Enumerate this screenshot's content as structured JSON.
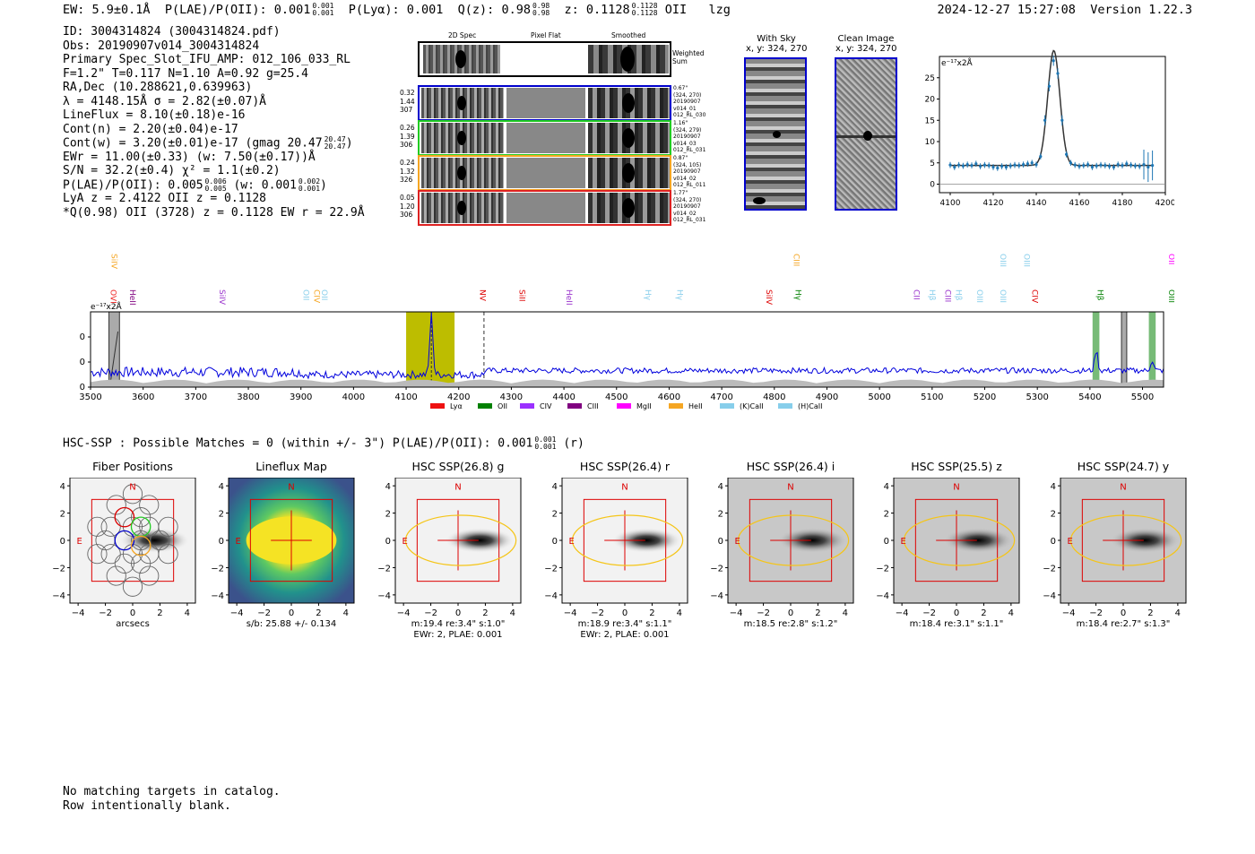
{
  "header": {
    "ew": "EW: 5.9±0.1Å",
    "plae_label": "P(LAE)/P(OII): 0.001",
    "plae_sup": "0.001",
    "plae_sub": "0.001",
    "plya": "P(Lyα): 0.001",
    "q_label": "Q(z): 0.98",
    "q_sup": "0.98",
    "q_sub": "0.98",
    "z_label": "z: 0.1128",
    "z_sup": "0.1128",
    "z_sub": "0.1128",
    "z_line": "OII",
    "flag": "lzg",
    "datetime": "2024-12-27 15:27:08",
    "version": "Version 1.22.3"
  },
  "info": {
    "id": "ID: 3004314824 (3004314824.pdf)",
    "obs": "Obs: 20190907v014_3004314824",
    "primary": "Primary Spec_Slot_IFU_AMP: 012_106_033_RL",
    "fit": "F=1.2\"  T=0.117  N=1.10  A=0.92  g=25.4",
    "radec": "RA,Dec (10.288621,0.639963)",
    "lambda": "λ = 4148.15Å  σ = 2.82(±0.07)Å",
    "lineflux": "LineFlux = 8.10(±0.18)e-16",
    "contn": "Cont(n) = 2.20(±0.04)e-17",
    "contw": "Cont(w) = 3.20(±0.01)e-17 (gmag 20.47",
    "contw_sup": "20.47",
    "contw_sub": "20.47",
    "ewr": "EWr = 11.00(±0.33) (w: 7.50(±0.17))Å",
    "sn": "S/N = 32.2(±0.4)  χ² = 1.1(±0.2)",
    "plae": "P(LAE)/P(OII): 0.005",
    "plae_sup": "0.006",
    "plae_sub": "0.005",
    "plae_w": "(w: 0.001",
    "plae_w_sup": "0.002",
    "plae_w_sub": "0.001",
    "lya": "LyA z = 2.4122  OII z = 0.1128",
    "q": "*Q(0.98) OII (3728) z = 0.1128  EW r = 22.9Å"
  },
  "cutouts": {
    "col_titles": [
      "2D Spec",
      "Pixel Flat",
      "Smoothed"
    ],
    "weighted": "Weighted Sum",
    "rows": [
      {
        "left": [
          "0.32",
          "1.44",
          "307"
        ],
        "right": [
          "0.67\"",
          "(324, 270)",
          "20190907",
          "v014_01",
          "012_RL_030"
        ],
        "color": "#0000cc"
      },
      {
        "left": [
          "0.26",
          "1.39",
          "306"
        ],
        "right": [
          "1.16\"",
          "(324, 279)",
          "20190907",
          "v014_03",
          "012_RL_031"
        ],
        "color": "#22cc22"
      },
      {
        "left": [
          "0.24",
          "1.32",
          "326"
        ],
        "right": [
          "0.87\"",
          "(324, 105)",
          "20190907",
          "v014_02",
          "012_RL_011"
        ],
        "color": "#f5a623"
      },
      {
        "left": [
          "0.05",
          "1.20",
          "306"
        ],
        "right": [
          "1.77\"",
          "(324, 270)",
          "20190907",
          "v014_02",
          "012_RL_031"
        ],
        "color": "#dd2222"
      }
    ]
  },
  "sky": {
    "with_sky_title": "With Sky",
    "with_sky_xy": "x, y: 324, 270",
    "clean_title": "Clean Image",
    "clean_xy": "x, y: 324, 270"
  },
  "zoom_chart": {
    "ylabel": "e⁻¹⁷x2Å",
    "xticks": [
      "4100",
      "4120",
      "4140",
      "4160",
      "4180",
      "4200"
    ],
    "yticks": [
      "0",
      "5",
      "10",
      "15",
      "20",
      "25"
    ]
  },
  "chart_data": [
    {
      "type": "scatter",
      "title": "",
      "ylabel": "e-17x2Å",
      "xlim": [
        4095,
        4200
      ],
      "ylim": [
        -2,
        30
      ],
      "x": [
        4100,
        4102,
        4104,
        4106,
        4108,
        4110,
        4112,
        4114,
        4116,
        4118,
        4120,
        4122,
        4124,
        4126,
        4128,
        4130,
        4132,
        4134,
        4136,
        4138,
        4140,
        4142,
        4144,
        4146,
        4148,
        4150,
        4152,
        4154,
        4156,
        4158,
        4160,
        4162,
        4164,
        4166,
        4168,
        4170,
        4172,
        4174,
        4176,
        4178,
        4180,
        4182,
        4184,
        4186,
        4188,
        4190,
        4192,
        4194
      ],
      "y": [
        4.5,
        4.0,
        4.5,
        4.3,
        4.6,
        4.4,
        4.8,
        4.2,
        4.5,
        4.4,
        4.0,
        3.8,
        4.2,
        4.0,
        4.3,
        4.5,
        4.4,
        4.6,
        4.8,
        5.0,
        4.6,
        6.5,
        15,
        23,
        29,
        26,
        15,
        7,
        5.0,
        4.5,
        4.2,
        4.4,
        4.6,
        4.0,
        4.3,
        4.5,
        4.4,
        4.2,
        4.0,
        4.6,
        4.4,
        4.8,
        4.5,
        4.3,
        4.2,
        4.6,
        4.0,
        4.4
      ],
      "fit_peak": 27.0,
      "fit_center": 4148.15,
      "fit_sigma": 2.82,
      "fit_continuum": 4.4
    },
    {
      "type": "line",
      "title": "",
      "ylabel": "e-17x2Å",
      "xlim": [
        3500,
        5540
      ],
      "ylim": [
        0,
        30
      ],
      "xticks": [
        "3500",
        "3600",
        "3700",
        "3800",
        "3900",
        "4000",
        "4100",
        "4200",
        "4300",
        "4400",
        "4500",
        "4600",
        "4700",
        "4800",
        "4900",
        "5000",
        "5100",
        "5200",
        "5300",
        "5400",
        "5500"
      ],
      "yticks": [
        "0",
        "10",
        "20"
      ],
      "lines": [
        {
          "name": "OVI",
          "x": 3533,
          "color": "#ee2222",
          "row": 1
        },
        {
          "name": "SiIV",
          "x": 3535,
          "color": "#f5a623",
          "row": 0
        },
        {
          "name": "HeII",
          "x": 3570,
          "color": "#800080",
          "row": 1
        },
        {
          "name": "SiIV",
          "x": 3740,
          "color": "#9932cc",
          "row": 1
        },
        {
          "name": "OII",
          "x": 3900,
          "color": "#87ceeb",
          "row": 1
        },
        {
          "name": "CIV",
          "x": 3920,
          "color": "#f5a623",
          "row": 1
        },
        {
          "name": "OII",
          "x": 3935,
          "color": "#87ceeb",
          "row": 1
        },
        {
          "name": "NV",
          "x": 4235,
          "color": "#dd0000",
          "row": 1
        },
        {
          "name": "SiII",
          "x": 4310,
          "color": "#dd0000",
          "row": 1
        },
        {
          "name": "HeII",
          "x": 4400,
          "color": "#9932cc",
          "row": 1
        },
        {
          "name": "Hγ",
          "x": 4550,
          "color": "#87ceeb",
          "row": 1
        },
        {
          "name": "Hγ",
          "x": 4610,
          "color": "#87ceeb",
          "row": 1
        },
        {
          "name": "SiIV",
          "x": 4780,
          "color": "#dd0000",
          "row": 1
        },
        {
          "name": "CIII",
          "x": 4832,
          "color": "#f5a623",
          "row": 0
        },
        {
          "name": "Hγ",
          "x": 4835,
          "color": "#008000",
          "row": 1
        },
        {
          "name": "CII",
          "x": 5060,
          "color": "#9932cc",
          "row": 1
        },
        {
          "name": "Hβ",
          "x": 5090,
          "color": "#87ceeb",
          "row": 1
        },
        {
          "name": "CIII",
          "x": 5120,
          "color": "#9932cc",
          "row": 1
        },
        {
          "name": "Hβ",
          "x": 5140,
          "color": "#87ceeb",
          "row": 1
        },
        {
          "name": "OIII",
          "x": 5180,
          "color": "#87ceeb",
          "row": 1
        },
        {
          "name": "OIII",
          "x": 5225,
          "color": "#87ceeb",
          "row": 0
        },
        {
          "name": "OIII",
          "x": 5225,
          "color": "#87ceeb",
          "row": 1
        },
        {
          "name": "OIII",
          "x": 5270,
          "color": "#87ceeb",
          "row": 0
        },
        {
          "name": "CIV",
          "x": 5285,
          "color": "#dd0000",
          "row": 1
        },
        {
          "name": "Hβ",
          "x": 5410,
          "color": "#008000",
          "row": 1
        },
        {
          "name": "OII",
          "x": 5545,
          "color": "#ff00ff",
          "row": 0
        },
        {
          "name": "OIII",
          "x": 5545,
          "color": "#008000",
          "row": 1
        }
      ],
      "legend": [
        {
          "name": "Lyα",
          "color": "#ee1111"
        },
        {
          "name": "OII",
          "color": "#008000"
        },
        {
          "name": "CIV",
          "color": "#9b30ff"
        },
        {
          "name": "CIII",
          "color": "#800080"
        },
        {
          "name": "MgII",
          "color": "#ff00ff"
        },
        {
          "name": "HeII",
          "color": "#f5a623"
        },
        {
          "name": "(K)CaII",
          "color": "#87ceeb"
        },
        {
          "name": "(H)CaII",
          "color": "#87ceeb"
        }
      ]
    }
  ],
  "hsc": {
    "header": "HSC-SSP : Possible Matches = 0 (within +/- 3\")  P(LAE)/P(OII): 0.001",
    "header_sup": "0.001",
    "header_sub": "0.001",
    "header_tail": "(r)",
    "panels": [
      {
        "title": "Fiber Positions",
        "line1": "arcsecs",
        "line2": ""
      },
      {
        "title": "Lineflux Map",
        "line1": "s/b: 25.88 +/- 0.134",
        "line2": ""
      },
      {
        "title": "HSC SSP(26.8) g",
        "line1": "m:19.4  re:3.4\"  s:1.0\"",
        "line2": "EWr: 2, PLAE: 0.001"
      },
      {
        "title": "HSC SSP(26.4) r",
        "line1": "m:18.9  re:3.4\"  s:1.1\"",
        "line2": "EWr: 2, PLAE: 0.001"
      },
      {
        "title": "HSC SSP(26.4) i",
        "line1": "m:18.5  re:2.8\"  s:1.2\"",
        "line2": ""
      },
      {
        "title": "HSC SSP(25.5) z",
        "line1": "m:18.4  re:3.1\"  s:1.1\"",
        "line2": ""
      },
      {
        "title": "HSC SSP(24.7) y",
        "line1": "m:18.4  re:2.7\"  s:1.3\"",
        "line2": ""
      }
    ],
    "xticks": [
      "−4",
      "−2",
      "0",
      "2",
      "4"
    ],
    "yticks": [
      "4",
      "2",
      "0",
      "−2",
      "−4"
    ],
    "north": "N",
    "east": "E"
  },
  "footer": {
    "line1": "No matching targets in catalog.",
    "line2": "Row intentionally blank."
  }
}
